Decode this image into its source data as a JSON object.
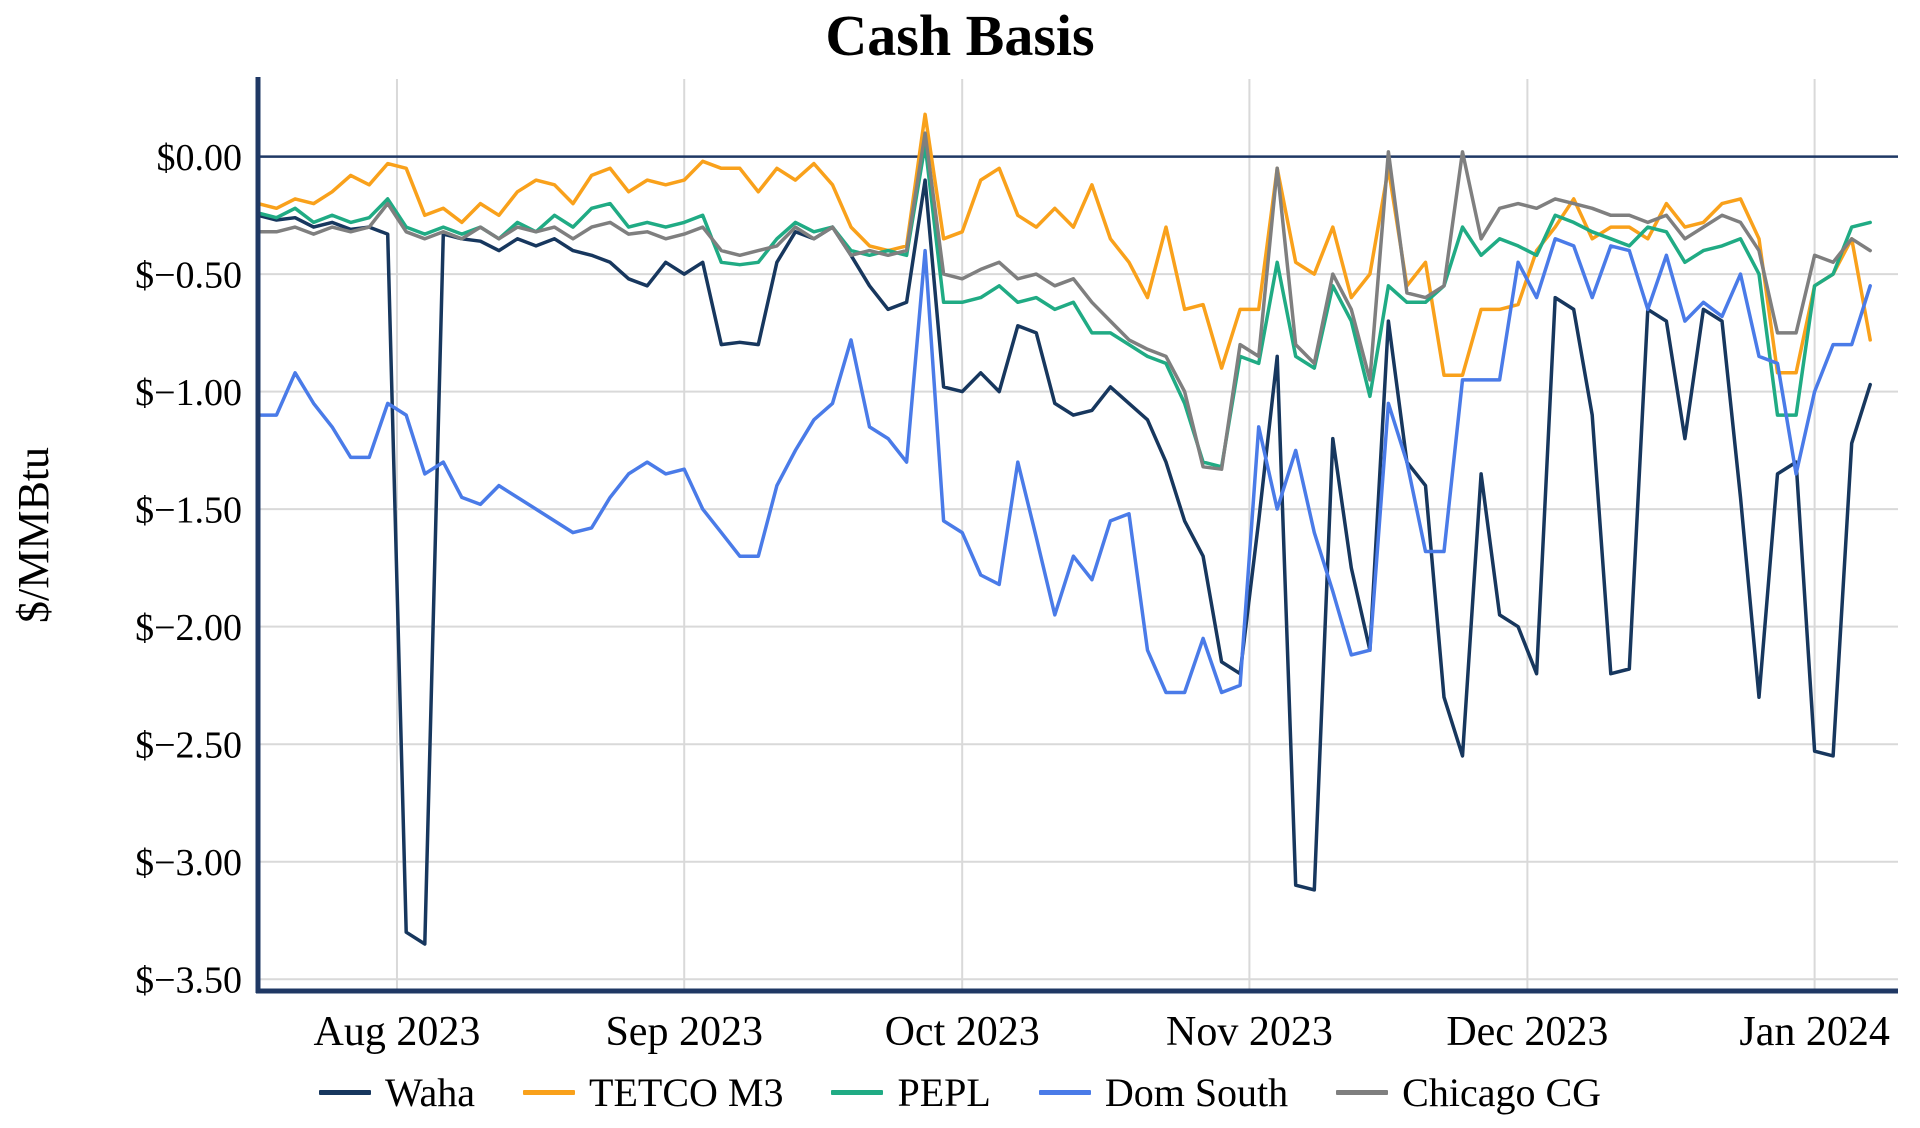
{
  "chart_data": {
    "type": "line",
    "title": "Cash Basis",
    "ylabel": "$/MMBtu",
    "xlabel": "",
    "grid": true,
    "legend_position": "bottom",
    "x_unit": "days-since-2023-07-17",
    "x_domain": [
      0,
      177
    ],
    "y_domain": [
      0.33,
      -3.55
    ],
    "y_ticks": [
      {
        "value": 0,
        "label": "$0.00"
      },
      {
        "value": -0.5,
        "label": "$−0.50"
      },
      {
        "value": -1.0,
        "label": "$−1.00"
      },
      {
        "value": -1.5,
        "label": "$−1.50"
      },
      {
        "value": -2.0,
        "label": "$−2.00"
      },
      {
        "value": -2.5,
        "label": "$−2.50"
      },
      {
        "value": -3.0,
        "label": "$−3.00"
      },
      {
        "value": -3.5,
        "label": "$−3.50"
      }
    ],
    "x_ticks": [
      {
        "day": 15,
        "label": "Aug 2023"
      },
      {
        "day": 46,
        "label": "Sep 2023"
      },
      {
        "day": 76,
        "label": "Oct 2023"
      },
      {
        "day": 107,
        "label": "Nov 2023"
      },
      {
        "day": 137,
        "label": "Dec 2023"
      },
      {
        "day": 168,
        "label": "Jan 2024"
      }
    ],
    "style": {
      "axis_color": "#1f3864",
      "grid_color": "#d9d9d9",
      "background": "#ffffff",
      "zero_line_width": 2.5,
      "series_line_width": 3.5
    },
    "x": [
      0,
      2,
      4,
      6,
      8,
      10,
      12,
      14,
      16,
      18,
      20,
      22,
      24,
      26,
      28,
      30,
      32,
      34,
      36,
      38,
      40,
      42,
      44,
      46,
      48,
      50,
      52,
      54,
      56,
      58,
      60,
      62,
      64,
      66,
      68,
      70,
      72,
      74,
      76,
      78,
      80,
      82,
      84,
      86,
      88,
      90,
      92,
      94,
      96,
      98,
      100,
      102,
      104,
      106,
      108,
      110,
      112,
      114,
      116,
      118,
      120,
      122,
      124,
      126,
      128,
      130,
      132,
      134,
      136,
      138,
      140,
      142,
      144,
      146,
      148,
      150,
      152,
      154,
      156,
      158,
      160,
      162,
      164,
      166,
      168,
      170,
      172,
      174
    ],
    "series": [
      {
        "name": "Waha",
        "color": "#17375e",
        "values": [
          -0.25,
          -0.27,
          -0.26,
          -0.3,
          -0.28,
          -0.31,
          -0.3,
          -0.33,
          -3.3,
          -3.35,
          -0.33,
          -0.35,
          -0.36,
          -0.4,
          -0.35,
          -0.38,
          -0.35,
          -0.4,
          -0.42,
          -0.45,
          -0.52,
          -0.55,
          -0.45,
          -0.5,
          -0.45,
          -0.8,
          -0.79,
          -0.8,
          -0.45,
          -0.32,
          -0.35,
          -0.3,
          -0.42,
          -0.55,
          -0.65,
          -0.62,
          -0.1,
          -0.98,
          -1.0,
          -0.92,
          -1.0,
          -0.72,
          -0.75,
          -1.05,
          -1.1,
          -1.08,
          -0.98,
          -1.05,
          -1.12,
          -1.3,
          -1.55,
          -1.7,
          -2.15,
          -2.2,
          -1.55,
          -0.85,
          -3.1,
          -3.12,
          -1.2,
          -1.75,
          -2.1,
          -0.7,
          -1.3,
          -1.4,
          -2.3,
          -2.55,
          -1.35,
          -1.95,
          -2.0,
          -2.2,
          -0.6,
          -0.65,
          -1.1,
          -2.2,
          -2.18,
          -0.65,
          -0.7,
          -1.2,
          -0.65,
          -0.7,
          -1.45,
          -2.3,
          -1.35,
          -1.3,
          -2.53,
          -2.55,
          -1.22,
          -0.97
        ]
      },
      {
        "name": "TETCO M3",
        "color": "#f9a11b",
        "values": [
          -0.2,
          -0.22,
          -0.18,
          -0.2,
          -0.15,
          -0.08,
          -0.12,
          -0.03,
          -0.05,
          -0.25,
          -0.22,
          -0.28,
          -0.2,
          -0.25,
          -0.15,
          -0.1,
          -0.12,
          -0.2,
          -0.08,
          -0.05,
          -0.15,
          -0.1,
          -0.12,
          -0.1,
          -0.02,
          -0.05,
          -0.05,
          -0.15,
          -0.05,
          -0.1,
          -0.03,
          -0.12,
          -0.3,
          -0.38,
          -0.4,
          -0.38,
          0.18,
          -0.35,
          -0.32,
          -0.1,
          -0.05,
          -0.25,
          -0.3,
          -0.22,
          -0.3,
          -0.12,
          -0.35,
          -0.45,
          -0.6,
          -0.3,
          -0.65,
          -0.63,
          -0.9,
          -0.65,
          -0.65,
          -0.05,
          -0.45,
          -0.5,
          -0.3,
          -0.6,
          -0.5,
          -0.05,
          -0.55,
          -0.45,
          -0.93,
          -0.93,
          -0.65,
          -0.65,
          -0.63,
          -0.4,
          -0.3,
          -0.18,
          -0.35,
          -0.3,
          -0.3,
          -0.35,
          -0.2,
          -0.3,
          -0.28,
          -0.2,
          -0.18,
          -0.35,
          -0.92,
          -0.92,
          -0.55,
          -0.5,
          -0.35,
          -0.78
        ]
      },
      {
        "name": "PEPL",
        "color": "#20ab84",
        "values": [
          -0.24,
          -0.26,
          -0.22,
          -0.28,
          -0.25,
          -0.28,
          -0.26,
          -0.18,
          -0.3,
          -0.33,
          -0.3,
          -0.33,
          -0.3,
          -0.35,
          -0.28,
          -0.32,
          -0.25,
          -0.3,
          -0.22,
          -0.2,
          -0.3,
          -0.28,
          -0.3,
          -0.28,
          -0.25,
          -0.45,
          -0.46,
          -0.45,
          -0.35,
          -0.28,
          -0.32,
          -0.3,
          -0.4,
          -0.42,
          -0.4,
          -0.42,
          0.05,
          -0.62,
          -0.62,
          -0.6,
          -0.55,
          -0.62,
          -0.6,
          -0.65,
          -0.62,
          -0.75,
          -0.75,
          -0.8,
          -0.85,
          -0.88,
          -1.05,
          -1.3,
          -1.32,
          -0.85,
          -0.88,
          -0.45,
          -0.85,
          -0.9,
          -0.55,
          -0.7,
          -1.02,
          -0.55,
          -0.62,
          -0.62,
          -0.55,
          -0.3,
          -0.42,
          -0.35,
          -0.38,
          -0.42,
          -0.25,
          -0.28,
          -0.32,
          -0.35,
          -0.38,
          -0.3,
          -0.32,
          -0.45,
          -0.4,
          -0.38,
          -0.35,
          -0.5,
          -1.1,
          -1.1,
          -0.55,
          -0.5,
          -0.3,
          -0.28
        ]
      },
      {
        "name": "Dom South",
        "color": "#4a7be8",
        "values": [
          -1.1,
          -1.1,
          -0.92,
          -1.05,
          -1.15,
          -1.28,
          -1.28,
          -1.05,
          -1.1,
          -1.35,
          -1.3,
          -1.45,
          -1.48,
          -1.4,
          -1.45,
          -1.5,
          -1.55,
          -1.6,
          -1.58,
          -1.45,
          -1.35,
          -1.3,
          -1.35,
          -1.33,
          -1.5,
          -1.6,
          -1.7,
          -1.7,
          -1.4,
          -1.25,
          -1.12,
          -1.05,
          -0.78,
          -1.15,
          -1.2,
          -1.3,
          -0.4,
          -1.55,
          -1.6,
          -1.78,
          -1.82,
          -1.3,
          -1.62,
          -1.95,
          -1.7,
          -1.8,
          -1.55,
          -1.52,
          -2.1,
          -2.28,
          -2.28,
          -2.05,
          -2.28,
          -2.25,
          -1.15,
          -1.5,
          -1.25,
          -1.6,
          -1.85,
          -2.12,
          -2.1,
          -1.05,
          -1.3,
          -1.68,
          -1.68,
          -0.95,
          -0.95,
          -0.95,
          -0.45,
          -0.6,
          -0.35,
          -0.38,
          -0.6,
          -0.38,
          -0.4,
          -0.65,
          -0.42,
          -0.7,
          -0.62,
          -0.68,
          -0.5,
          -0.85,
          -0.88,
          -1.35,
          -1.0,
          -0.8,
          -0.8,
          -0.55
        ]
      },
      {
        "name": "Chicago CG",
        "color": "#7f7f7f",
        "values": [
          -0.32,
          -0.32,
          -0.3,
          -0.33,
          -0.3,
          -0.32,
          -0.3,
          -0.2,
          -0.32,
          -0.35,
          -0.32,
          -0.35,
          -0.3,
          -0.35,
          -0.3,
          -0.32,
          -0.3,
          -0.35,
          -0.3,
          -0.28,
          -0.33,
          -0.32,
          -0.35,
          -0.33,
          -0.3,
          -0.4,
          -0.42,
          -0.4,
          -0.38,
          -0.3,
          -0.35,
          -0.3,
          -0.42,
          -0.4,
          -0.42,
          -0.4,
          0.1,
          -0.5,
          -0.52,
          -0.48,
          -0.45,
          -0.52,
          -0.5,
          -0.55,
          -0.52,
          -0.62,
          -0.7,
          -0.78,
          -0.82,
          -0.85,
          -1.0,
          -1.32,
          -1.33,
          -0.8,
          -0.85,
          -0.05,
          -0.8,
          -0.88,
          -0.5,
          -0.65,
          -0.95,
          0.02,
          -0.58,
          -0.6,
          -0.55,
          0.02,
          -0.35,
          -0.22,
          -0.2,
          -0.22,
          -0.18,
          -0.2,
          -0.22,
          -0.25,
          -0.25,
          -0.28,
          -0.25,
          -0.35,
          -0.3,
          -0.25,
          -0.28,
          -0.4,
          -0.75,
          -0.75,
          -0.42,
          -0.45,
          -0.35,
          -0.4
        ]
      }
    ]
  }
}
